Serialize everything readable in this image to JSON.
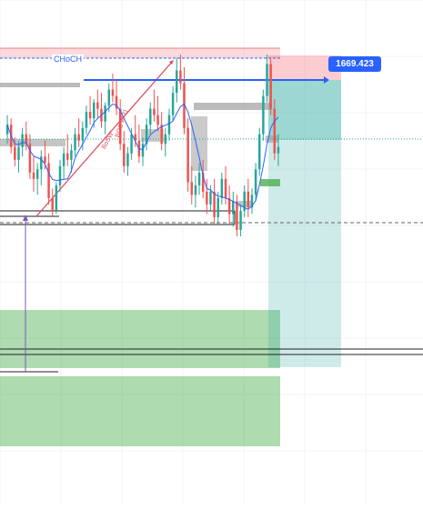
{
  "chart_data": {
    "type": "candlestick",
    "price_label": "1669.423",
    "structure_label": "CHoCH",
    "rotated_labels": [
      "BoSW",
      "BOS W TI"
    ],
    "ylim": [
      1590,
      1680
    ],
    "target_price": 1669.423,
    "entry_price": 1653.5,
    "stop_price": 1677.5,
    "colors": {
      "bull": "#26a69a",
      "bear": "#ef5350",
      "ma": "#2962ff",
      "target_zone": "#26a69a",
      "stop_zone": "#f23645",
      "demand_zone": "#4caf50",
      "supply_zone": "#f23645",
      "trendline": "#e04b5a"
    },
    "candles": [
      [
        1650,
        1656,
        1647,
        1653
      ],
      [
        1653,
        1655,
        1644,
        1646
      ],
      [
        1646,
        1649,
        1640,
        1642
      ],
      [
        1642,
        1648,
        1638,
        1646
      ],
      [
        1646,
        1652,
        1643,
        1650
      ],
      [
        1650,
        1654,
        1645,
        1647
      ],
      [
        1647,
        1650,
        1636,
        1638
      ],
      [
        1638,
        1643,
        1632,
        1636
      ],
      [
        1636,
        1641,
        1631,
        1639
      ],
      [
        1639,
        1645,
        1634,
        1643
      ],
      [
        1643,
        1648,
        1639,
        1641
      ],
      [
        1641,
        1644,
        1628,
        1630
      ],
      [
        1630,
        1633,
        1624,
        1626
      ],
      [
        1626,
        1635,
        1625,
        1634
      ],
      [
        1634,
        1642,
        1632,
        1640
      ],
      [
        1640,
        1646,
        1636,
        1644
      ],
      [
        1644,
        1650,
        1640,
        1642
      ],
      [
        1642,
        1647,
        1638,
        1645
      ],
      [
        1645,
        1652,
        1643,
        1650
      ],
      [
        1650,
        1655,
        1646,
        1648
      ],
      [
        1648,
        1654,
        1645,
        1652
      ],
      [
        1652,
        1659,
        1650,
        1657
      ],
      [
        1657,
        1662,
        1653,
        1655
      ],
      [
        1655,
        1661,
        1652,
        1660
      ],
      [
        1660,
        1664,
        1655,
        1658
      ],
      [
        1658,
        1663,
        1652,
        1654
      ],
      [
        1654,
        1660,
        1650,
        1659
      ],
      [
        1659,
        1666,
        1657,
        1664
      ],
      [
        1664,
        1669,
        1660,
        1662
      ],
      [
        1662,
        1667,
        1656,
        1658
      ],
      [
        1658,
        1661,
        1645,
        1647
      ],
      [
        1647,
        1651,
        1638,
        1640
      ],
      [
        1640,
        1646,
        1637,
        1644
      ],
      [
        1644,
        1652,
        1642,
        1650
      ],
      [
        1650,
        1656,
        1646,
        1648
      ],
      [
        1648,
        1653,
        1641,
        1643
      ],
      [
        1643,
        1649,
        1640,
        1647
      ],
      [
        1647,
        1655,
        1645,
        1653
      ],
      [
        1653,
        1660,
        1650,
        1658
      ],
      [
        1658,
        1664,
        1654,
        1656
      ],
      [
        1656,
        1662,
        1651,
        1653
      ],
      [
        1653,
        1657,
        1645,
        1647
      ],
      [
        1647,
        1652,
        1643,
        1650
      ],
      [
        1650,
        1658,
        1648,
        1656
      ],
      [
        1656,
        1665,
        1654,
        1663
      ],
      [
        1663,
        1674,
        1660,
        1670
      ],
      [
        1670,
        1675,
        1664,
        1666
      ],
      [
        1666,
        1671,
        1650,
        1652
      ],
      [
        1652,
        1655,
        1632,
        1635
      ],
      [
        1635,
        1640,
        1628,
        1631
      ],
      [
        1631,
        1637,
        1627,
        1634
      ],
      [
        1634,
        1641,
        1631,
        1638
      ],
      [
        1638,
        1642,
        1630,
        1632
      ],
      [
        1632,
        1636,
        1625,
        1628
      ],
      [
        1628,
        1634,
        1626,
        1632
      ],
      [
        1632,
        1636,
        1622,
        1624
      ],
      [
        1624,
        1632,
        1622,
        1630
      ],
      [
        1630,
        1638,
        1628,
        1636
      ],
      [
        1636,
        1640,
        1628,
        1630
      ],
      [
        1630,
        1634,
        1622,
        1625
      ],
      [
        1625,
        1632,
        1621,
        1629
      ],
      [
        1629,
        1631,
        1618,
        1620
      ],
      [
        1620,
        1628,
        1618,
        1626
      ],
      [
        1626,
        1634,
        1624,
        1632
      ],
      [
        1632,
        1636,
        1624,
        1627
      ],
      [
        1627,
        1633,
        1625,
        1631
      ],
      [
        1631,
        1641,
        1629,
        1639
      ],
      [
        1639,
        1652,
        1637,
        1650
      ],
      [
        1650,
        1664,
        1648,
        1662
      ],
      [
        1662,
        1675,
        1660,
        1672
      ],
      [
        1672,
        1674,
        1656,
        1658
      ],
      [
        1658,
        1661,
        1642,
        1644
      ],
      [
        1644,
        1650,
        1640,
        1646
      ]
    ]
  }
}
